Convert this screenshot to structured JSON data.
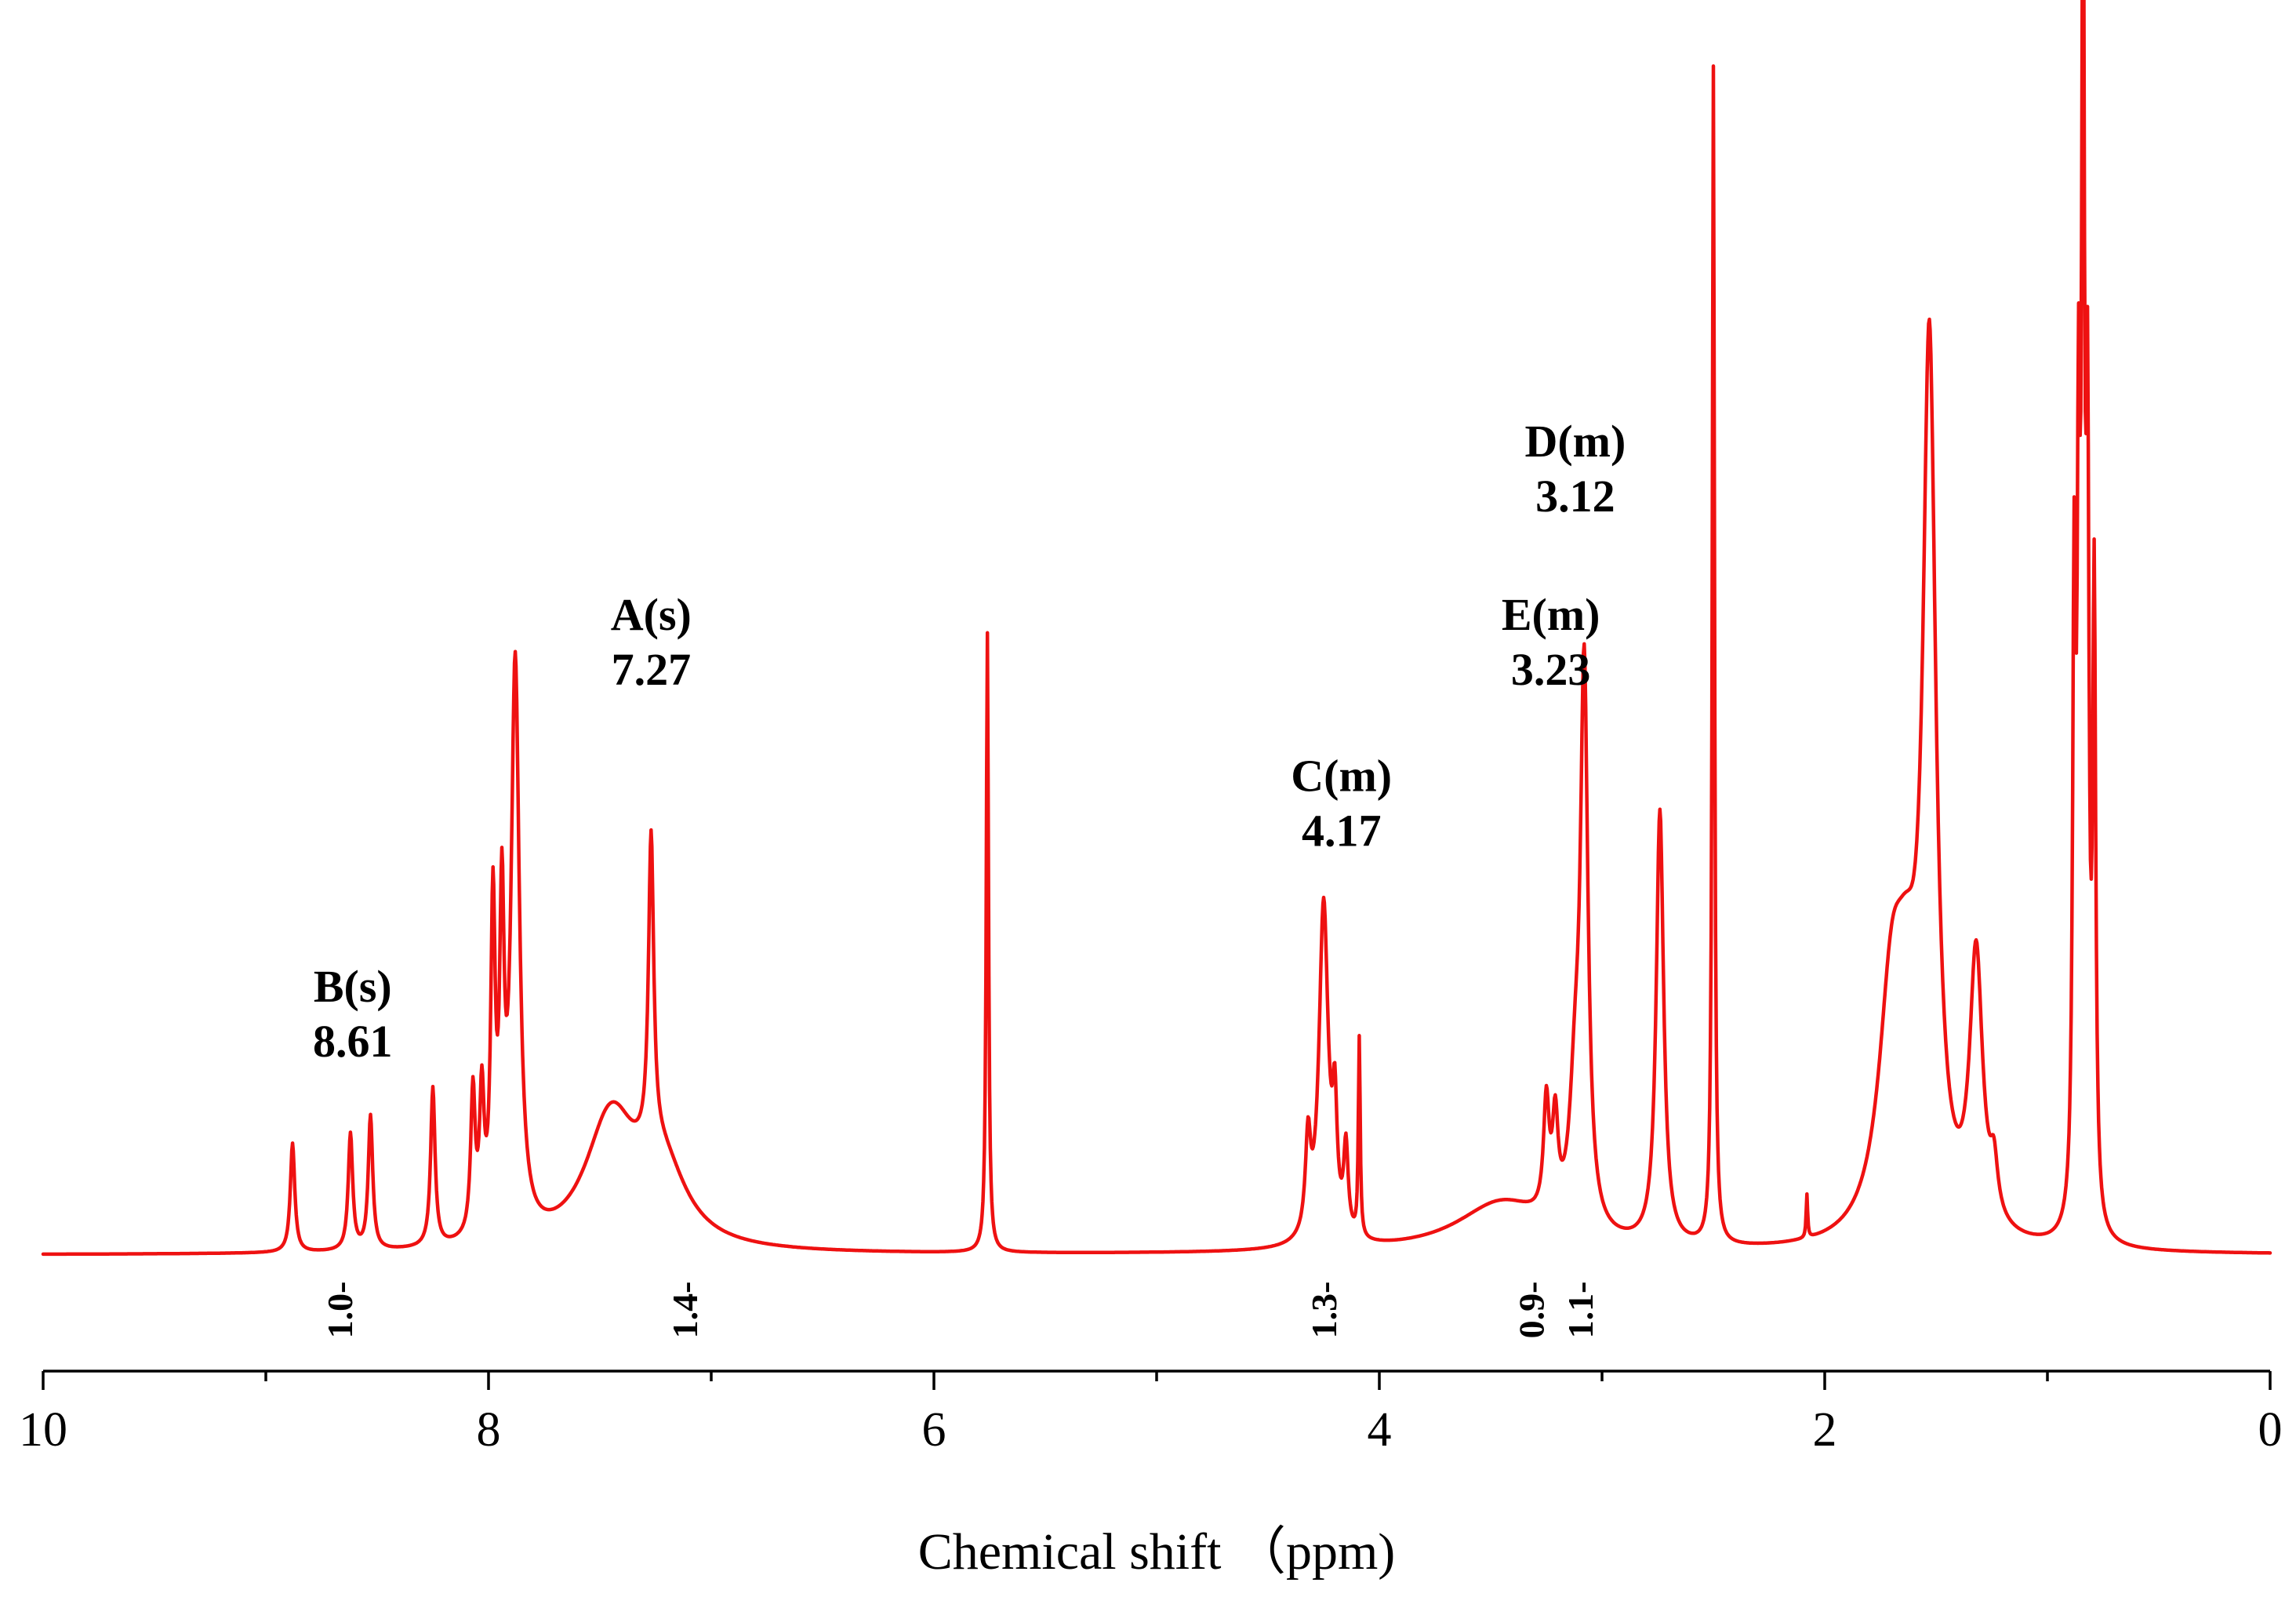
{
  "chart_data": {
    "type": "line",
    "title": "",
    "xlabel": "Chemical shift （ppm)",
    "ylabel": "",
    "xlim": [
      10,
      0
    ],
    "x_reversed": true,
    "ylim": [
      0,
      1.0
    ],
    "grid": false,
    "legend": "none",
    "line_color": "#ee1111",
    "x_ticks": [
      10,
      8,
      6,
      4,
      2,
      0
    ],
    "x_tick_labels": [
      "10",
      "8",
      "6",
      "4",
      "2",
      "0"
    ],
    "x_minor_ticks": [
      9,
      7,
      5,
      3,
      1
    ],
    "peaks": [
      {
        "shift": 8.88,
        "height": 0.088,
        "width": 0.012
      },
      {
        "shift": 8.62,
        "height": 0.094,
        "width": 0.012
      },
      {
        "shift": 8.53,
        "height": 0.108,
        "width": 0.012
      },
      {
        "shift": 8.25,
        "height": 0.128,
        "width": 0.012
      },
      {
        "shift": 8.07,
        "height": 0.115,
        "width": 0.012
      },
      {
        "shift": 8.03,
        "height": 0.108,
        "width": 0.012
      },
      {
        "shift": 7.98,
        "height": 0.255,
        "width": 0.012
      },
      {
        "shift": 7.94,
        "height": 0.24,
        "width": 0.012
      },
      {
        "shift": 7.88,
        "height": 0.46,
        "width": 0.022
      },
      {
        "shift": 7.45,
        "height": 0.105,
        "width": 0.14
      },
      {
        "shift": 7.22,
        "height": 0.06,
        "width": 0.13
      },
      {
        "shift": 7.27,
        "height": 0.25,
        "width": 0.014
      },
      {
        "shift": 5.76,
        "height": 0.5,
        "width": 0.006
      },
      {
        "shift": 4.32,
        "height": 0.075,
        "width": 0.014
      },
      {
        "shift": 4.25,
        "height": 0.275,
        "width": 0.025
      },
      {
        "shift": 4.2,
        "height": 0.09,
        "width": 0.012
      },
      {
        "shift": 4.15,
        "height": 0.07,
        "width": 0.012
      },
      {
        "shift": 4.09,
        "height": 0.16,
        "width": 0.005
      },
      {
        "shift": 3.45,
        "height": 0.04,
        "width": 0.25
      },
      {
        "shift": 3.25,
        "height": 0.09,
        "width": 0.015
      },
      {
        "shift": 3.21,
        "height": 0.075,
        "width": 0.015
      },
      {
        "shift": 3.12,
        "height": 0.1,
        "width": 0.03
      },
      {
        "shift": 3.08,
        "height": 0.44,
        "width": 0.02
      },
      {
        "shift": 2.74,
        "height": 0.35,
        "width": 0.02
      },
      {
        "shift": 2.5,
        "height": 0.95,
        "width": 0.006
      },
      {
        "shift": 2.08,
        "height": 0.035,
        "width": 0.004
      },
      {
        "shift": 1.7,
        "height": 0.17,
        "width": 0.07
      },
      {
        "shift": 1.63,
        "height": 0.13,
        "width": 0.07
      },
      {
        "shift": 1.53,
        "height": 0.68,
        "width": 0.035
      },
      {
        "shift": 1.32,
        "height": 0.22,
        "width": 0.035
      },
      {
        "shift": 1.24,
        "height": 0.04,
        "width": 0.02
      },
      {
        "shift": 0.88,
        "height": 0.48,
        "width": 0.008
      },
      {
        "shift": 0.86,
        "height": 0.53,
        "width": 0.008
      },
      {
        "shift": 0.84,
        "height": 1.0,
        "width": 0.008
      },
      {
        "shift": 0.82,
        "height": 0.56,
        "width": 0.008
      },
      {
        "shift": 0.79,
        "height": 0.5,
        "width": 0.008
      }
    ],
    "annotations": [
      {
        "name": "B",
        "label": "B(s)",
        "value": "8.61",
        "shift": 8.61,
        "anchor_intensity": 0.16
      },
      {
        "name": "A",
        "label": "A(s)",
        "value": "7.27",
        "shift": 7.27,
        "anchor_intensity": 0.46
      },
      {
        "name": "C",
        "label": "C(m)",
        "value": "4.17",
        "shift": 4.17,
        "anchor_intensity": 0.33
      },
      {
        "name": "E",
        "label": "E(m)",
        "value": "3.23",
        "shift": 3.23,
        "anchor_intensity": 0.46
      },
      {
        "name": "D",
        "label": "D(m)",
        "value": "3.12",
        "shift": 3.12,
        "anchor_intensity": 0.6
      }
    ],
    "integrals": [
      {
        "label": "1.0-",
        "shift": 8.65
      },
      {
        "label": "1.4-",
        "shift": 7.1
      },
      {
        "label": "1.3-",
        "shift": 4.23
      },
      {
        "label": "0.9-",
        "shift": 3.3
      },
      {
        "label": "1.1-",
        "shift": 3.08
      }
    ]
  }
}
